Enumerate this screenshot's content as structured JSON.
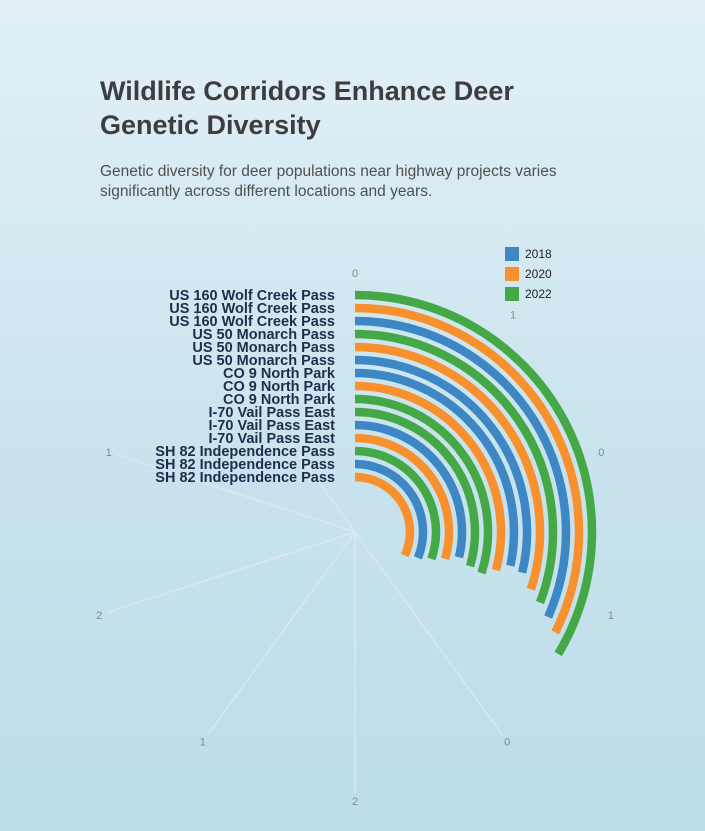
{
  "header": {
    "title": "Wildlife Corridors Enhance Deer Genetic Diversity",
    "subtitle": "Genetic diversity for deer populations near highway projects varies significantly across different locations and years."
  },
  "chart_data": {
    "type": "radial-bar",
    "title": "Wildlife Corridors Enhance Deer Genetic Diversity",
    "subtitle": "Genetic diversity for deer populations near highway projects varies significantly across different locations and years.",
    "angular_max": 2.5,
    "legend_position": "top-right",
    "angular_tick_labels": [
      "0",
      "1",
      "0",
      "1",
      "0",
      "2",
      "1",
      "2",
      "1",
      "1"
    ],
    "series": [
      {
        "name": "2018",
        "color": "#3d87c4"
      },
      {
        "name": "2020",
        "color": "#f7902d"
      },
      {
        "name": "2022",
        "color": "#45a847"
      }
    ],
    "bars": [
      {
        "category": "US 160 Wolf Creek Pass",
        "series": "2022",
        "value": 0.84
      },
      {
        "category": "US 160 Wolf Creek Pass",
        "series": "2020",
        "value": 0.81
      },
      {
        "category": "US 160 Wolf Creek Pass",
        "series": "2018",
        "value": 0.79
      },
      {
        "category": "US 50 Monarch Pass",
        "series": "2022",
        "value": 0.77
      },
      {
        "category": "US 50 Monarch Pass",
        "series": "2020",
        "value": 0.75
      },
      {
        "category": "US 50 Monarch Pass",
        "series": "2018",
        "value": 0.72
      },
      {
        "category": "CO 9 North Park",
        "series": "2018",
        "value": 0.71
      },
      {
        "category": "CO 9 North Park",
        "series": "2020",
        "value": 0.73
      },
      {
        "category": "CO 9 North Park",
        "series": "2022",
        "value": 0.75
      },
      {
        "category": "I-70 Vail Pass East",
        "series": "2022",
        "value": 0.74
      },
      {
        "category": "I-70 Vail Pass East",
        "series": "2018",
        "value": 0.72
      },
      {
        "category": "I-70 Vail Pass East",
        "series": "2020",
        "value": 0.74
      },
      {
        "category": "SH 82 Independence Pass",
        "series": "2022",
        "value": 0.76
      },
      {
        "category": "SH 82 Independence Pass",
        "series": "2018",
        "value": 0.78
      },
      {
        "category": "SH 82 Independence Pass",
        "series": "2020",
        "value": 0.8
      }
    ]
  }
}
